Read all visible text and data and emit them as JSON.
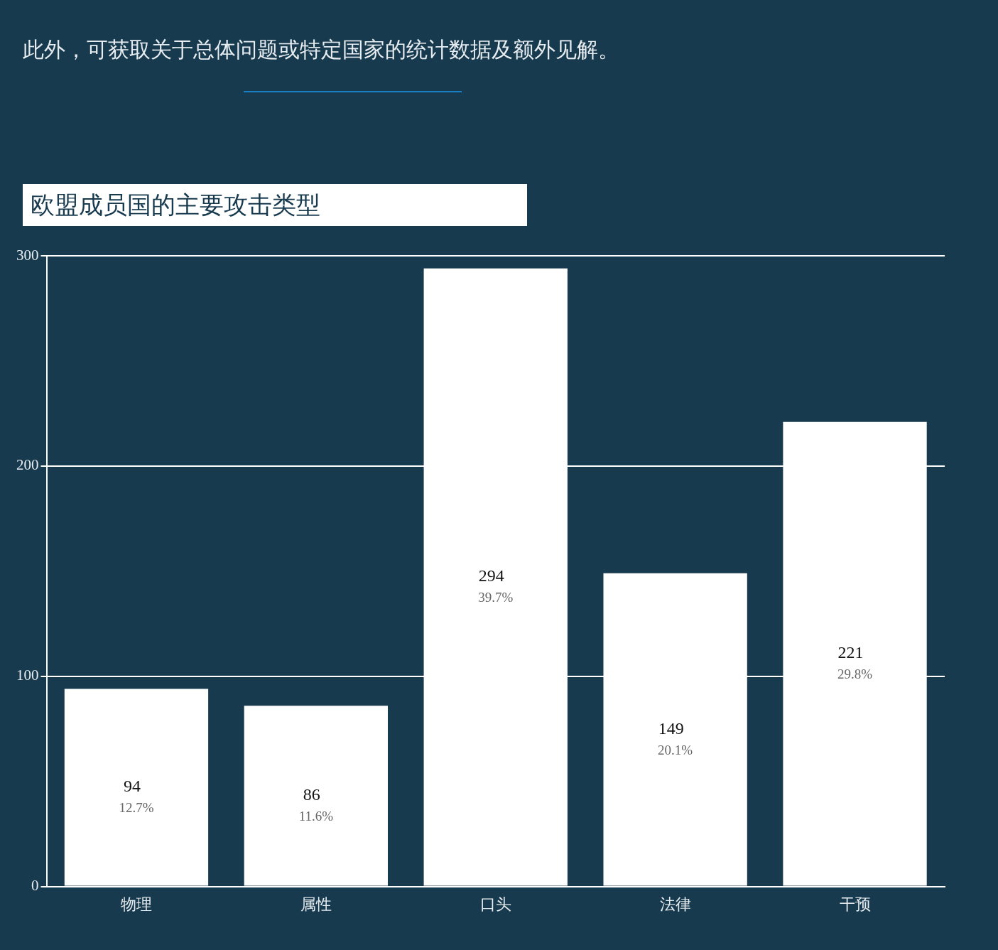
{
  "chart_data": {
    "type": "bar",
    "subtitle": "此外，可获取关于总体问题或特定国家的统计数据及额外见解。",
    "title": "欧盟成员国的主要攻击类型",
    "categories": [
      "物理",
      "属性",
      "口头",
      "法律",
      "干预"
    ],
    "values": [
      94,
      86,
      294,
      149,
      221
    ],
    "value_labels": [
      "94\n12.7%",
      "86\n11.6%",
      "294\n39.7%",
      "149\n20.1%",
      "221\n29.8%"
    ],
    "color": "#ffffff",
    "ylim": [
      0,
      300
    ],
    "yticks": [
      0,
      100,
      200,
      300
    ],
    "grid": "y",
    "legend": false
  }
}
